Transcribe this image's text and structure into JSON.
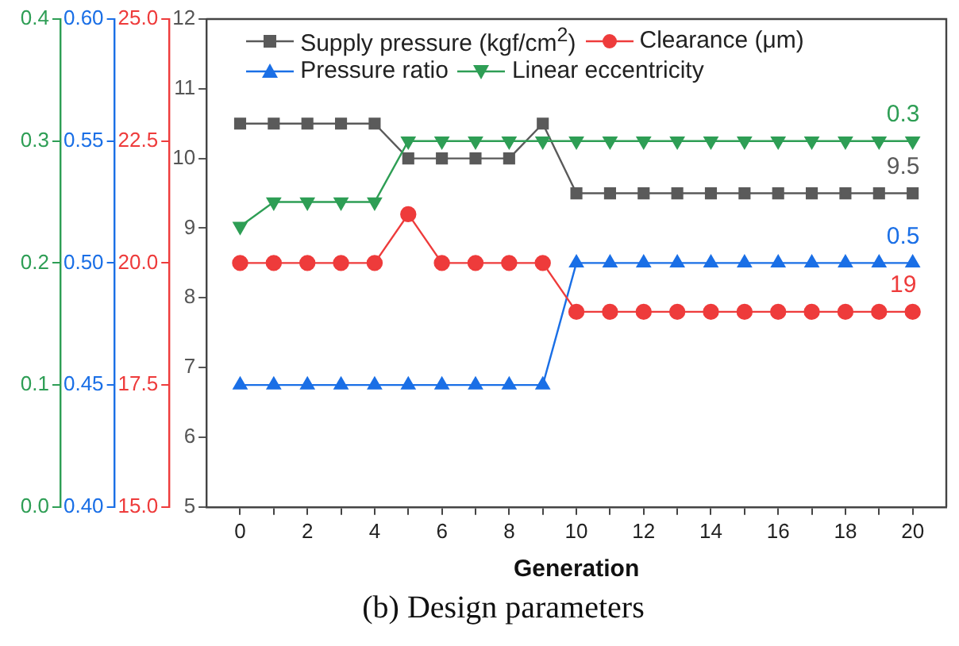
{
  "chart_data": [
    {
      "type": "line",
      "title": "(b) Design parameters",
      "xlabel": "Generation",
      "x": [
        0,
        1,
        2,
        3,
        4,
        5,
        6,
        7,
        8,
        9,
        10,
        11,
        12,
        13,
        14,
        15,
        16,
        17,
        18,
        19,
        20
      ],
      "series": [
        {
          "name": "Supply pressure (kgf/cm$^{2}$)",
          "color": "#5a5a5a",
          "marker": "square",
          "values": [
            10.5,
            10.5,
            10.5,
            10.5,
            10.5,
            10.0,
            10.0,
            10.0,
            10.0,
            10.5,
            9.5,
            9.5,
            9.5,
            9.5,
            9.5,
            9.5,
            9.5,
            9.5,
            9.5,
            9.5,
            9.5
          ],
          "value_labels": [
            null,
            null,
            null,
            null,
            null,
            null,
            null,
            null,
            null,
            null,
            null,
            null,
            null,
            null,
            null,
            null,
            null,
            null,
            null,
            null,
            "9.5"
          ]
        },
        {
          "name": "Clearance (μm)",
          "color": "#ee3b3b",
          "marker": "circle",
          "axis": "y2",
          "values": [
            20,
            20,
            20,
            20,
            20,
            21,
            20,
            20,
            20,
            20,
            19,
            19,
            19,
            19,
            19,
            19,
            19,
            19,
            19,
            19,
            19
          ],
          "value_labels": [
            null,
            null,
            null,
            null,
            null,
            null,
            null,
            null,
            null,
            null,
            null,
            null,
            null,
            null,
            null,
            null,
            null,
            null,
            null,
            null,
            "19"
          ]
        },
        {
          "name": "Pressure ratio",
          "color": "#1a6fe6",
          "marker": "triangle",
          "axis": "y3",
          "values": [
            0.45,
            0.45,
            0.45,
            0.45,
            0.45,
            0.45,
            0.45,
            0.45,
            0.45,
            0.45,
            0.5,
            0.5,
            0.5,
            0.5,
            0.5,
            0.5,
            0.5,
            0.5,
            0.5,
            0.5,
            0.5
          ],
          "value_labels": [
            null,
            null,
            null,
            null,
            null,
            null,
            null,
            null,
            null,
            null,
            null,
            null,
            null,
            null,
            null,
            null,
            null,
            null,
            null,
            null,
            "0.5"
          ]
        }
      ],
      "xlim": [
        -1,
        21
      ],
      "xticks": [
        0,
        {
          "value": 1,
          "label": null
        },
        2,
        {
          "value": 3,
          "label": null
        },
        4,
        {
          "value": 5,
          "label": null
        },
        6,
        {
          "value": 7,
          "label": null
        },
        8,
        {
          "value": 9,
          "label": null
        },
        10,
        {
          "value": 11,
          "label": null
        },
        12,
        {
          "value": 13,
          "label": null
        },
        14,
        {
          "value": 15,
          "label": null
        },
        16,
        {
          "value": 17,
          "label": null
        },
        18,
        {
          "value": 19,
          "label": null
        },
        20
      ],
      "ylim": [
        5,
        12
      ],
      "yticks": [
        5,
        6,
        7,
        8,
        9,
        10,
        11,
        12
      ],
      "y2lim": [
        15,
        25
      ],
      "y2ticks": [
        {
          "value": 15,
          "label": "15.0"
        },
        {
          "value": 17.5,
          "label": "17.5"
        },
        {
          "value": 20,
          "label": "20.0"
        },
        {
          "value": 22.5,
          "label": "22.5"
        },
        {
          "value": 25,
          "label": "25.0"
        }
      ],
      "y3lim": [
        0.4,
        0.6
      ],
      "y3ticks": [
        {
          "value": 0.4,
          "label": "0.40"
        },
        {
          "value": 0.45,
          "label": "0.45"
        },
        {
          "value": 0.5,
          "label": "0.50"
        },
        {
          "value": 0.55,
          "label": "0.55"
        },
        {
          "value": 0.6,
          "label": "0.60"
        }
      ],
      "grid": false,
      "legend": "top",
      "line_style": "solid"
    },
    {
      "type": "line",
      "x": [
        0,
        1,
        2,
        3,
        4,
        5,
        6,
        7,
        8,
        9,
        10,
        11,
        12,
        13,
        14,
        15,
        16,
        17,
        18,
        19,
        20
      ],
      "series": [
        {
          "name": "Linear eccentricity",
          "color": "#2e9e55",
          "marker": "triangle-down",
          "values": [
            0.23,
            0.25,
            0.25,
            0.25,
            0.25,
            0.3,
            0.3,
            0.3,
            0.3,
            0.3,
            0.3,
            0.3,
            0.3,
            0.3,
            0.3,
            0.3,
            0.3,
            0.3,
            0.3,
            0.3,
            0.3
          ],
          "value_labels": [
            null,
            null,
            null,
            null,
            null,
            null,
            null,
            null,
            null,
            null,
            null,
            null,
            null,
            null,
            null,
            null,
            null,
            null,
            null,
            null,
            "0.3"
          ]
        }
      ],
      "xlim": [
        -1,
        21
      ],
      "ylim": [
        0,
        0.4
      ],
      "yticks": [
        {
          "value": 0,
          "label": "0.0"
        },
        {
          "value": 0.1,
          "label": "0.1"
        },
        {
          "value": 0.2,
          "label": "0.2"
        },
        {
          "value": 0.3,
          "label": "0.3"
        },
        {
          "value": 0.4,
          "label": "0.4"
        }
      ],
      "tick_labels": "y",
      "grid": false,
      "line_style": "solid"
    }
  ]
}
